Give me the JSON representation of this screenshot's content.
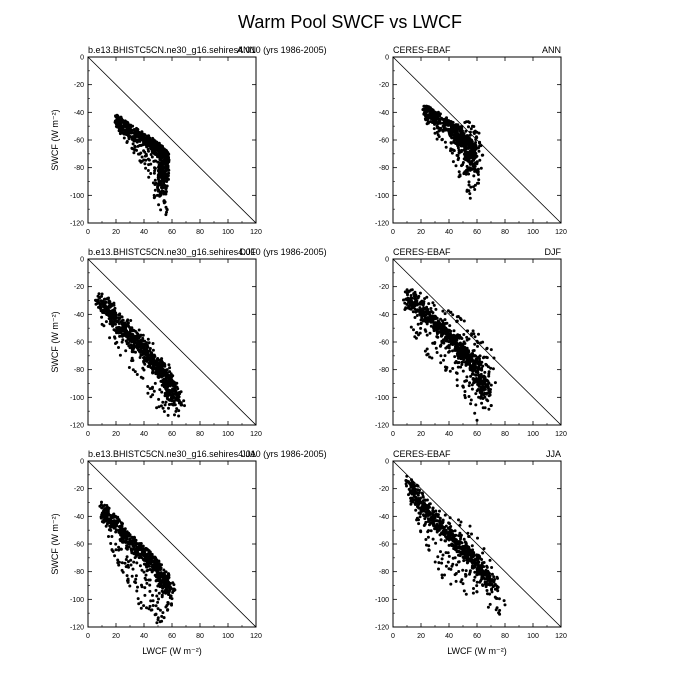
{
  "figure": {
    "title": "Warm Pool SWCF vs LWCF"
  },
  "chart_data": [
    {
      "type": "scatter",
      "left_title": "b.e13.BHISTC5CN.ne30_g16.sehires4.010 (yrs 1986-2005)",
      "right_title": "ANN",
      "xlabel": "",
      "ylabel": "SWCF (W m⁻²)",
      "xlim": [
        0,
        120
      ],
      "ylim": [
        -120,
        0
      ],
      "xticks": [
        "0",
        "20",
        "40",
        "60",
        "80",
        "100",
        "120"
      ],
      "yticks": [
        "0",
        "-20",
        "-40",
        "-60",
        "-80",
        "-100",
        "-120"
      ],
      "reference_line": "1:1 diagonal",
      "cloud": {
        "xs": [
          18,
          23,
          32,
          42,
          48,
          52,
          58,
          57,
          50,
          42,
          35,
          26,
          20
        ],
        "ys": [
          -41,
          -43,
          -50,
          -56,
          -60,
          -63,
          -70,
          -115,
          -112,
          -82,
          -72,
          -62,
          -50
        ],
        "spine": [
          [
            19,
            -44
          ],
          [
            35,
            -55
          ],
          [
            50,
            -64
          ],
          [
            56,
            -72
          ],
          [
            53,
            -95
          ]
        ],
        "n": 720,
        "seed": 11
      }
    },
    {
      "type": "scatter",
      "left_title": "CERES-EBAF",
      "right_title": "ANN",
      "xlabel": "",
      "ylabel": "",
      "xlim": [
        0,
        120
      ],
      "ylim": [
        -120,
        0
      ],
      "xticks": [
        "0",
        "20",
        "40",
        "60",
        "80",
        "100",
        "120"
      ],
      "yticks": [
        "0",
        "-20",
        "-40",
        "-60",
        "-80",
        "-100",
        "-120"
      ],
      "reference_line": "1:1 diagonal",
      "cloud": {
        "xs": [
          20,
          24,
          33,
          44,
          54,
          62,
          65,
          62,
          56,
          48,
          40,
          30,
          25
        ],
        "ys": [
          -34,
          -35,
          -40,
          -48,
          -46,
          -55,
          -72,
          -90,
          -105,
          -90,
          -70,
          -58,
          -52
        ],
        "spine": [
          [
            22,
            -37
          ],
          [
            34,
            -45
          ],
          [
            46,
            -55
          ],
          [
            55,
            -65
          ],
          [
            57,
            -80
          ]
        ],
        "n": 650,
        "seed": 23
      }
    },
    {
      "type": "scatter",
      "left_title": "b.e13.BHISTC5CN.ne30_g16.sehires4.010 (yrs 1986-2005)",
      "right_title": "DJF",
      "xlabel": "",
      "ylabel": "SWCF (W m⁻²)",
      "xlim": [
        0,
        120
      ],
      "ylim": [
        -120,
        0
      ],
      "xticks": [
        "0",
        "20",
        "40",
        "60",
        "80",
        "100",
        "120"
      ],
      "yticks": [
        "0",
        "-20",
        "-40",
        "-60",
        "-80",
        "-100",
        "-120"
      ],
      "reference_line": "1:1 diagonal",
      "cloud": {
        "xs": [
          6,
          12,
          25,
          40,
          52,
          60,
          68,
          72,
          62,
          50,
          38,
          22,
          10,
          5
        ],
        "ys": [
          -25,
          -25,
          -38,
          -53,
          -67,
          -80,
          -98,
          -115,
          -117,
          -110,
          -90,
          -70,
          -48,
          -32
        ],
        "spine": [
          [
            8,
            -28
          ],
          [
            25,
            -50
          ],
          [
            42,
            -68
          ],
          [
            55,
            -85
          ],
          [
            63,
            -103
          ]
        ],
        "n": 820,
        "seed": 37
      }
    },
    {
      "type": "scatter",
      "left_title": "CERES-EBAF",
      "right_title": "DJF",
      "xlabel": "",
      "ylabel": "",
      "xlim": [
        0,
        120
      ],
      "ylim": [
        -120,
        0
      ],
      "xticks": [
        "0",
        "20",
        "40",
        "60",
        "80",
        "100",
        "120"
      ],
      "yticks": [
        "0",
        "-20",
        "-40",
        "-60",
        "-80",
        "-100",
        "-120"
      ],
      "reference_line": "1:1 diagonal",
      "cloud": {
        "xs": [
          8,
          18,
          32,
          48,
          62,
          72,
          75,
          70,
          60,
          48,
          35,
          20,
          12,
          7
        ],
        "ys": [
          -22,
          -22,
          -32,
          -42,
          -55,
          -65,
          -85,
          -110,
          -118,
          -95,
          -78,
          -66,
          -50,
          -32
        ],
        "spine": [
          [
            10,
            -26
          ],
          [
            28,
            -45
          ],
          [
            44,
            -60
          ],
          [
            58,
            -75
          ],
          [
            66,
            -98
          ]
        ],
        "n": 820,
        "seed": 51
      }
    },
    {
      "type": "scatter",
      "left_title": "b.e13.BHISTC5CN.ne30_g16.sehires4.010 (yrs 1986-2005)",
      "right_title": "JJA",
      "xlabel": "LWCF (W m⁻²)",
      "ylabel": "SWCF (W m⁻²)",
      "xlim": [
        0,
        120
      ],
      "ylim": [
        -120,
        0
      ],
      "xticks": [
        "0",
        "20",
        "40",
        "60",
        "80",
        "100",
        "120"
      ],
      "yticks": [
        "0",
        "-20",
        "-40",
        "-60",
        "-80",
        "-100",
        "-120"
      ],
      "reference_line": "1:1 diagonal",
      "cloud": {
        "xs": [
          8,
          15,
          30,
          45,
          58,
          63,
          60,
          52,
          42,
          32,
          22,
          14,
          9
        ],
        "ys": [
          -28,
          -32,
          -52,
          -66,
          -80,
          -92,
          -105,
          -118,
          -115,
          -100,
          -80,
          -58,
          -40
        ],
        "spine": [
          [
            10,
            -35
          ],
          [
            25,
            -52
          ],
          [
            40,
            -67
          ],
          [
            52,
            -80
          ],
          [
            58,
            -95
          ]
        ],
        "n": 720,
        "seed": 67
      }
    },
    {
      "type": "scatter",
      "left_title": "CERES-EBAF",
      "right_title": "JJA",
      "xlabel": "LWCF (W m⁻²)",
      "ylabel": "",
      "xlim": [
        0,
        120
      ],
      "ylim": [
        -120,
        0
      ],
      "xticks": [
        "0",
        "20",
        "40",
        "60",
        "80",
        "100",
        "120"
      ],
      "yticks": [
        "0",
        "-20",
        "-40",
        "-60",
        "-80",
        "-100",
        "-120"
      ],
      "reference_line": "1:1 diagonal",
      "cloud": {
        "xs": [
          8,
          14,
          28,
          42,
          55,
          65,
          74,
          82,
          76,
          62,
          48,
          35,
          22,
          12
        ],
        "ys": [
          -10,
          -12,
          -30,
          -40,
          -45,
          -62,
          -80,
          -108,
          -112,
          -102,
          -95,
          -85,
          -60,
          -30
        ],
        "spine": [
          [
            10,
            -16
          ],
          [
            25,
            -38
          ],
          [
            42,
            -55
          ],
          [
            58,
            -72
          ],
          [
            72,
            -92
          ]
        ],
        "n": 720,
        "seed": 83
      }
    }
  ]
}
